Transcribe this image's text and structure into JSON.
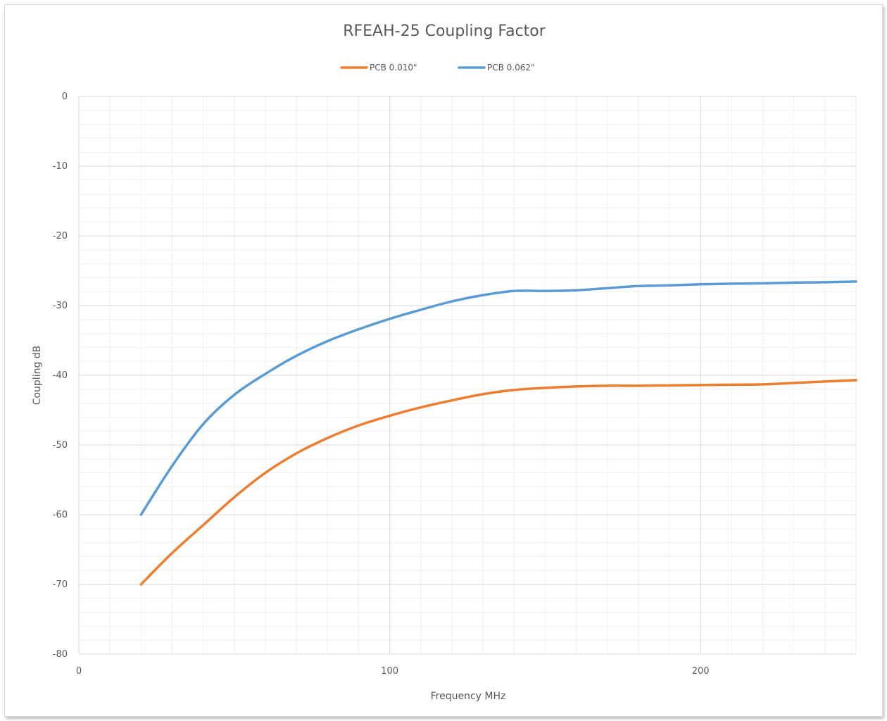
{
  "chart_data": {
    "type": "line",
    "title": "RFEAH-25 Coupling Factor",
    "xlabel": "Frequency MHz",
    "ylabel": "Coupling dB",
    "xlim": [
      0,
      250
    ],
    "ylim": [
      -80,
      0
    ],
    "x_major_ticks": [
      0,
      100,
      200
    ],
    "x_minor_step": 10,
    "y_major_ticks": [
      0,
      -10,
      -20,
      -30,
      -40,
      -50,
      -60,
      -70,
      -80
    ],
    "y_minor_step": 2,
    "grid": true,
    "legend_position": "top",
    "series": [
      {
        "name": "PCB 0.010\"",
        "color": "#ed7d31",
        "x": [
          20,
          30,
          40,
          50,
          60,
          70,
          80,
          90,
          100,
          110,
          120,
          130,
          140,
          150,
          160,
          170,
          180,
          190,
          200,
          210,
          220,
          230,
          240,
          250
        ],
        "y": [
          -70,
          -65.5,
          -61.5,
          -57.5,
          -54,
          -51.2,
          -49,
          -47.2,
          -45.8,
          -44.6,
          -43.6,
          -42.7,
          -42.1,
          -41.8,
          -41.6,
          -41.5,
          -41.5,
          -41.45,
          -41.4,
          -41.35,
          -41.3,
          -41.1,
          -40.9,
          -40.7
        ]
      },
      {
        "name": "PCB 0.062\"",
        "color": "#5b9bd5",
        "x": [
          20,
          30,
          40,
          50,
          60,
          70,
          80,
          90,
          100,
          110,
          120,
          130,
          140,
          150,
          160,
          170,
          180,
          190,
          200,
          210,
          220,
          230,
          240,
          250
        ],
        "y": [
          -60,
          -53,
          -47,
          -42.8,
          -39.8,
          -37.2,
          -35.1,
          -33.4,
          -31.9,
          -30.6,
          -29.4,
          -28.5,
          -27.9,
          -27.9,
          -27.8,
          -27.5,
          -27.2,
          -27.1,
          -26.95,
          -26.85,
          -26.8,
          -26.7,
          -26.65,
          -26.55
        ]
      }
    ]
  }
}
